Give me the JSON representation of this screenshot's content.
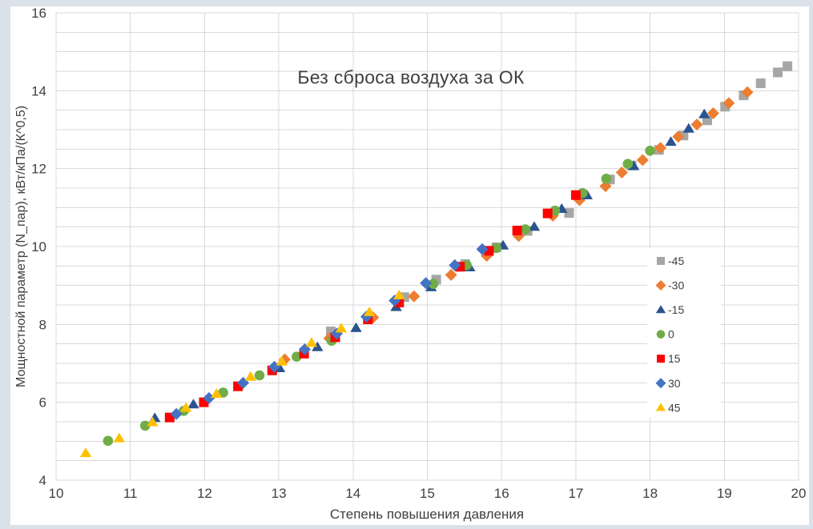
{
  "colors": {
    "frame": "#dbe1e9",
    "canvas": "#ffffff",
    "grid": "#d9d9d9",
    "tick_text": "#404040",
    "title_text": "#3f3f3f",
    "legend_text": "#404040"
  },
  "chart_data": {
    "type": "scatter",
    "title": "Без сброса воздуха за ОК",
    "xlabel": "Степень повышения давления",
    "ylabel": "Мощностной параметр (N_пар), кВт/кПа/(К^0,5)",
    "xlim": [
      10,
      20
    ],
    "ylim": [
      4,
      16
    ],
    "x_ticks": [
      10,
      11,
      12,
      13,
      14,
      15,
      16,
      17,
      18,
      19,
      20
    ],
    "y_ticks": [
      4,
      6,
      8,
      10,
      12,
      14,
      16
    ],
    "x_grid_step": 1,
    "y_grid_step": 0.5,
    "grid": true,
    "legend_position": "right-inside",
    "series": [
      {
        "name": "-45",
        "marker": "square",
        "color": "#a6a6a6",
        "points": [
          [
            13.7,
            7.82
          ],
          [
            14.69,
            8.7
          ],
          [
            15.12,
            9.15
          ],
          [
            15.51,
            9.55
          ],
          [
            15.93,
            9.98
          ],
          [
            16.35,
            10.4
          ],
          [
            16.91,
            10.86
          ],
          [
            17.46,
            11.72
          ],
          [
            17.75,
            12.08
          ],
          [
            18.12,
            12.48
          ],
          [
            18.45,
            12.85
          ],
          [
            18.77,
            13.24
          ],
          [
            19.01,
            13.59
          ],
          [
            19.26,
            13.88
          ],
          [
            19.49,
            14.19
          ],
          [
            19.72,
            14.47
          ],
          [
            19.85,
            14.63
          ]
        ]
      },
      {
        "name": "-30",
        "marker": "diamond",
        "color": "#ed7d31",
        "points": [
          [
            13.08,
            7.1
          ],
          [
            13.68,
            7.64
          ],
          [
            14.27,
            8.18
          ],
          [
            14.82,
            8.72
          ],
          [
            15.32,
            9.27
          ],
          [
            15.8,
            9.76
          ],
          [
            16.23,
            10.27
          ],
          [
            16.69,
            10.79
          ],
          [
            17.05,
            11.19
          ],
          [
            17.4,
            11.55
          ],
          [
            17.62,
            11.9
          ],
          [
            17.9,
            12.22
          ],
          [
            18.14,
            12.53
          ],
          [
            18.38,
            12.82
          ],
          [
            18.63,
            13.13
          ],
          [
            18.85,
            13.42
          ],
          [
            19.06,
            13.68
          ],
          [
            19.31,
            13.96
          ]
        ]
      },
      {
        "name": "-15",
        "marker": "triangle",
        "color": "#2a5490",
        "points": [
          [
            11.33,
            5.6
          ],
          [
            11.85,
            5.95
          ],
          [
            13.01,
            6.88
          ],
          [
            13.52,
            7.42
          ],
          [
            14.04,
            7.91
          ],
          [
            14.58,
            8.45
          ],
          [
            15.05,
            8.96
          ],
          [
            15.57,
            9.47
          ],
          [
            16.02,
            10.03
          ],
          [
            16.44,
            10.51
          ],
          [
            16.81,
            10.97
          ],
          [
            17.15,
            11.32
          ],
          [
            17.78,
            12.07
          ],
          [
            18.28,
            12.69
          ],
          [
            18.52,
            13.03
          ],
          [
            18.73,
            13.4
          ]
        ]
      },
      {
        "name": "0",
        "marker": "circle",
        "color": "#70ad47",
        "points": [
          [
            10.7,
            5.01
          ],
          [
            11.2,
            5.4
          ],
          [
            11.72,
            5.78
          ],
          [
            12.25,
            6.25
          ],
          [
            12.74,
            6.69
          ],
          [
            13.24,
            7.17
          ],
          [
            13.71,
            7.58
          ],
          [
            15.08,
            9.04
          ],
          [
            15.53,
            9.52
          ],
          [
            15.93,
            9.96
          ],
          [
            16.32,
            10.44
          ],
          [
            16.72,
            10.92
          ],
          [
            17.09,
            11.37
          ],
          [
            17.41,
            11.74
          ],
          [
            17.7,
            12.12
          ],
          [
            18.0,
            12.46
          ]
        ]
      },
      {
        "name": "15",
        "marker": "square",
        "color": "#ff0000",
        "points": [
          [
            11.53,
            5.61
          ],
          [
            11.99,
            6.0
          ],
          [
            12.45,
            6.41
          ],
          [
            12.91,
            6.82
          ],
          [
            13.34,
            7.25
          ],
          [
            13.76,
            7.67
          ],
          [
            14.2,
            8.13
          ],
          [
            14.62,
            8.56
          ],
          [
            15.44,
            9.48
          ],
          [
            15.83,
            9.89
          ],
          [
            16.21,
            10.41
          ],
          [
            16.62,
            10.85
          ],
          [
            17.0,
            11.32
          ]
        ]
      },
      {
        "name": "30",
        "marker": "diamond",
        "color": "#4472c4",
        "points": [
          [
            11.62,
            5.7
          ],
          [
            12.06,
            6.11
          ],
          [
            12.52,
            6.5
          ],
          [
            12.94,
            6.91
          ],
          [
            13.35,
            7.36
          ],
          [
            13.78,
            7.76
          ],
          [
            14.18,
            8.2
          ],
          [
            14.56,
            8.61
          ],
          [
            14.98,
            9.06
          ],
          [
            15.37,
            9.52
          ],
          [
            15.74,
            9.93
          ]
        ]
      },
      {
        "name": "45",
        "marker": "triangle",
        "color": "#ffc000",
        "points": [
          [
            10.4,
            4.7
          ],
          [
            10.85,
            5.08
          ],
          [
            11.3,
            5.49
          ],
          [
            11.75,
            5.86
          ],
          [
            12.16,
            6.22
          ],
          [
            12.62,
            6.66
          ],
          [
            13.04,
            7.05
          ],
          [
            13.44,
            7.53
          ],
          [
            13.84,
            7.9
          ],
          [
            14.22,
            8.32
          ],
          [
            14.62,
            8.75
          ]
        ]
      }
    ]
  }
}
